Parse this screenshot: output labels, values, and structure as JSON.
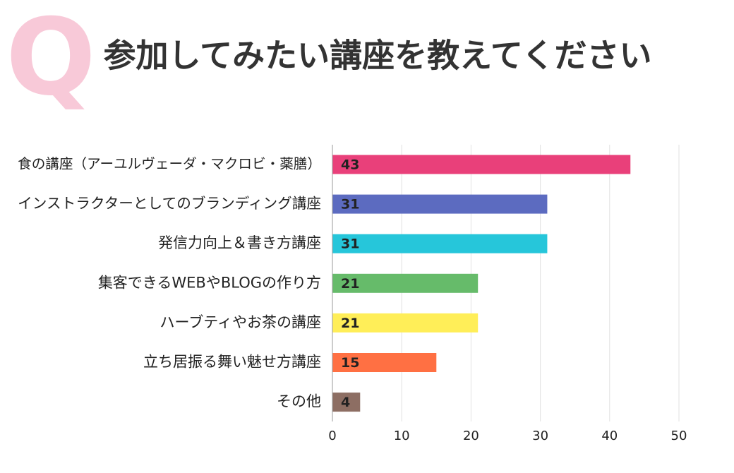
{
  "chart_data": {
    "type": "barh",
    "title_mark": "Q",
    "title": "参加してみたい講座を教えてください",
    "categories": [
      "食の講座（アーユルヴェーダ・マクロビ・薬膳）",
      "インストラクターとしてのブランディング講座",
      "発信力向上＆書き方講座",
      "集客できるWEBやBLOGの作り方",
      "ハーブティやお茶の講座",
      "立ち居振る舞い魅せ方講座",
      "その他"
    ],
    "values": [
      43,
      31,
      31,
      21,
      21,
      15,
      4
    ],
    "colors": [
      "#e9407a",
      "#5c6bc0",
      "#26c6da",
      "#66bb6a",
      "#ffee58",
      "#ff7043",
      "#8d6e63"
    ],
    "xlim": [
      0,
      50
    ],
    "xticks": [
      0,
      10,
      20,
      30,
      40,
      50
    ],
    "grid": true
  }
}
